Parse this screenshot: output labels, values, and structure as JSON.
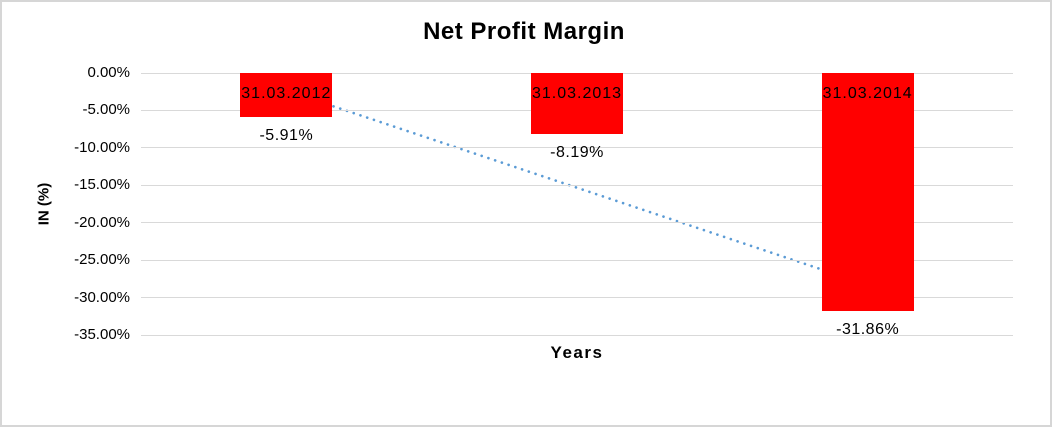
{
  "chart_data": {
    "type": "bar",
    "title": "Net Profit Margin",
    "xlabel": "Years",
    "ylabel": "IN (%)",
    "categories": [
      "31.03.2012",
      "31.03.2013",
      "31.03.2014"
    ],
    "values": [
      -5.91,
      -8.19,
      -31.86
    ],
    "value_labels": [
      "-5.91%",
      "-8.19%",
      "-31.86%"
    ],
    "y_ticks": [
      {
        "value": 0,
        "label": "0.00%"
      },
      {
        "value": -5,
        "label": "-5.00%"
      },
      {
        "value": -10,
        "label": "-10.00%"
      },
      {
        "value": -15,
        "label": "-15.00%"
      },
      {
        "value": -20,
        "label": "-20.00%"
      },
      {
        "value": -25,
        "label": "-25.00%"
      },
      {
        "value": -30,
        "label": "-30.00%"
      },
      {
        "value": -35,
        "label": "-35.00%"
      }
    ],
    "ylim": [
      -35,
      0
    ],
    "grid": true,
    "legend": false,
    "bar_color": "#FF0000",
    "text_color": "#000000",
    "gridline_color": "#D9D9D9",
    "trendline": {
      "type": "linear",
      "style": "dotted",
      "color": "#5B9BD5",
      "start_value": -2.35,
      "end_value": -28.3
    }
  }
}
